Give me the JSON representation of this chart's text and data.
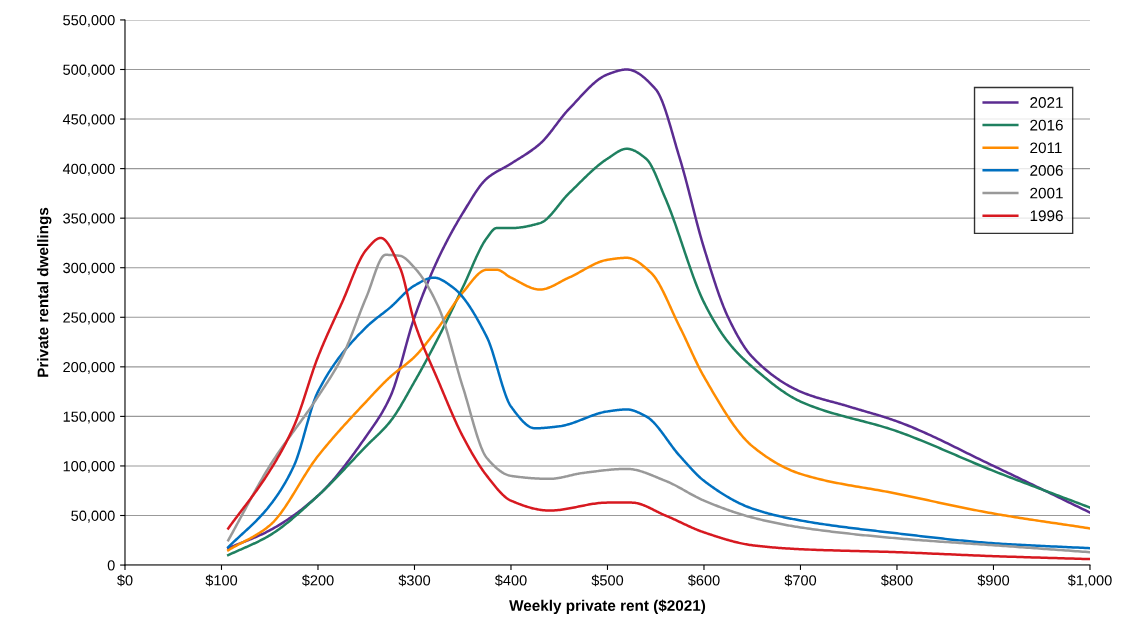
{
  "chart_data": {
    "type": "line",
    "xlabel": "Weekly private rent ($2021)",
    "ylabel": "Private rental dwellings",
    "xlim": [
      0,
      1000
    ],
    "ylim": [
      0,
      550000
    ],
    "xticks": [
      {
        "value": 0,
        "label": "$0"
      },
      {
        "value": 100,
        "label": "$100"
      },
      {
        "value": 200,
        "label": "$200"
      },
      {
        "value": 300,
        "label": "$300"
      },
      {
        "value": 400,
        "label": "$400"
      },
      {
        "value": 500,
        "label": "$500"
      },
      {
        "value": 600,
        "label": "$600"
      },
      {
        "value": 700,
        "label": "$700"
      },
      {
        "value": 800,
        "label": "$800"
      },
      {
        "value": 900,
        "label": "$900"
      },
      {
        "value": 1000,
        "label": "$1,000"
      }
    ],
    "yticks": [
      0,
      {
        "value": 50000,
        "label": "50,000"
      },
      {
        "value": 100000,
        "label": "100,000"
      },
      {
        "value": 150000,
        "label": "150,000"
      },
      {
        "value": 200000,
        "label": "200,000"
      },
      {
        "value": 250000,
        "label": "250,000"
      },
      {
        "value": 300000,
        "label": "300,000"
      },
      {
        "value": 350000,
        "label": "350,000"
      },
      {
        "value": 400000,
        "label": "400,000"
      },
      {
        "value": 450000,
        "label": "450,000"
      },
      {
        "value": 500000,
        "label": "500,000"
      },
      {
        "value": 550000,
        "label": "550,000"
      }
    ],
    "grid": "y",
    "legend": "top right",
    "marker": "none",
    "line_style": "solid",
    "series": [
      {
        "name": "2021",
        "color": "#5b2c91",
        "x": [
          107,
          150,
          200,
          250,
          275,
          300,
          325,
          350,
          375,
          400,
          430,
          460,
          500,
          520,
          550,
          575,
          600,
          625,
          650,
          700,
          750,
          800,
          900,
          1000
        ],
        "values": [
          17000,
          35000,
          70000,
          130000,
          170000,
          250000,
          310000,
          355000,
          390000,
          405000,
          425000,
          460000,
          495000,
          500000,
          480000,
          410000,
          320000,
          250000,
          210000,
          175000,
          160000,
          145000,
          100000,
          53000
        ]
      },
      {
        "name": "2016",
        "color": "#1f8060",
        "x": [
          107,
          150,
          200,
          250,
          275,
          300,
          325,
          350,
          375,
          385,
          400,
          430,
          460,
          500,
          520,
          540,
          560,
          600,
          625,
          650,
          700,
          800,
          900,
          1000
        ],
        "values": [
          10000,
          30000,
          70000,
          120000,
          145000,
          185000,
          230000,
          280000,
          330000,
          340000,
          340000,
          345000,
          375000,
          410000,
          420000,
          410000,
          370000,
          265000,
          225000,
          200000,
          165000,
          135000,
          95000,
          58000
        ]
      },
      {
        "name": "2011",
        "color": "#ff8c00",
        "x": [
          107,
          150,
          200,
          250,
          275,
          300,
          325,
          350,
          375,
          385,
          400,
          430,
          460,
          500,
          520,
          545,
          575,
          600,
          650,
          700,
          800,
          900,
          1000
        ],
        "values": [
          15000,
          40000,
          110000,
          165000,
          190000,
          210000,
          240000,
          275000,
          298000,
          298000,
          290000,
          278000,
          290000,
          308000,
          310000,
          295000,
          240000,
          190000,
          120000,
          92000,
          72000,
          52000,
          37000
        ]
      },
      {
        "name": "2006",
        "color": "#0070c0",
        "x": [
          107,
          150,
          175,
          200,
          250,
          275,
          300,
          320,
          340,
          375,
          400,
          425,
          450,
          500,
          520,
          540,
          575,
          600,
          650,
          700,
          800,
          900,
          1000
        ],
        "values": [
          18000,
          60000,
          100000,
          175000,
          240000,
          260000,
          282000,
          290000,
          280000,
          230000,
          160000,
          138000,
          140000,
          155000,
          157000,
          150000,
          110000,
          85000,
          57000,
          45000,
          32000,
          22000,
          17000
        ]
      },
      {
        "name": "2001",
        "color": "#999999",
        "x": [
          107,
          150,
          200,
          225,
          250,
          270,
          285,
          300,
          325,
          350,
          375,
          400,
          440,
          475,
          520,
          560,
          600,
          650,
          700,
          800,
          900,
          1000
        ],
        "values": [
          25000,
          100000,
          170000,
          210000,
          270000,
          313000,
          312000,
          300000,
          260000,
          180000,
          108000,
          90000,
          87000,
          93000,
          97000,
          85000,
          65000,
          48000,
          38000,
          27000,
          20000,
          13000
        ]
      },
      {
        "name": "1996",
        "color": "#d71920",
        "x": [
          107,
          150,
          175,
          200,
          225,
          250,
          265,
          285,
          300,
          325,
          350,
          375,
          400,
          440,
          500,
          525,
          560,
          600,
          650,
          700,
          800,
          900,
          1000
        ],
        "values": [
          37000,
          95000,
          140000,
          210000,
          265000,
          318000,
          330000,
          300000,
          245000,
          185000,
          130000,
          90000,
          65000,
          55000,
          63000,
          63000,
          50000,
          33000,
          20000,
          16000,
          13000,
          9000,
          6000
        ]
      }
    ]
  }
}
